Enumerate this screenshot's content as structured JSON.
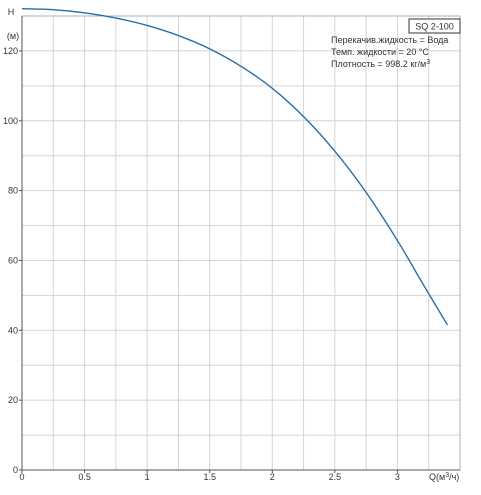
{
  "chart_data": {
    "type": "line",
    "title_box": "SQ 2-100",
    "annotations": [
      {
        "text": "Перекачив.жидкость = Вода"
      },
      {
        "text": "Темп. жидкости = 20 °C"
      },
      {
        "text": "Плотность = 998.2 кг/м",
        "sup": "3"
      }
    ],
    "ylabel_top": "H",
    "ylabel_unit": "(м)",
    "xlabel": "Q(м",
    "xlabel_sup": "3",
    "xlabel_tail": "/ч)",
    "xlim": [
      0,
      3.5
    ],
    "ylim": [
      0,
      130
    ],
    "x_ticks": [
      {
        "v": 0,
        "label": "0"
      },
      {
        "v": 0.5,
        "label": "0.5"
      },
      {
        "v": 1,
        "label": "1"
      },
      {
        "v": 1.5,
        "label": "1.5"
      },
      {
        "v": 2,
        "label": "2"
      },
      {
        "v": 2.5,
        "label": "2.5"
      },
      {
        "v": 3,
        "label": "3"
      }
    ],
    "y_ticks": [
      {
        "v": 0,
        "label": "0"
      },
      {
        "v": 20,
        "label": "20"
      },
      {
        "v": 40,
        "label": "40"
      },
      {
        "v": 60,
        "label": "60"
      },
      {
        "v": 80,
        "label": "80"
      },
      {
        "v": 100,
        "label": "100"
      },
      {
        "v": 120,
        "label": "120"
      }
    ],
    "grid": true,
    "series": [
      {
        "color": "#2a6ea6",
        "x": [
          0,
          0.25,
          0.5,
          0.75,
          1.0,
          1.25,
          1.5,
          1.75,
          2.0,
          2.25,
          2.5,
          2.75,
          3.0,
          3.2,
          3.4
        ],
        "y": [
          132.1,
          131.8,
          130.9,
          129.4,
          127.3,
          124.4,
          120.6,
          115.6,
          109.3,
          101.2,
          91.3,
          79.5,
          65.7,
          53.5,
          41.5
        ]
      }
    ]
  }
}
